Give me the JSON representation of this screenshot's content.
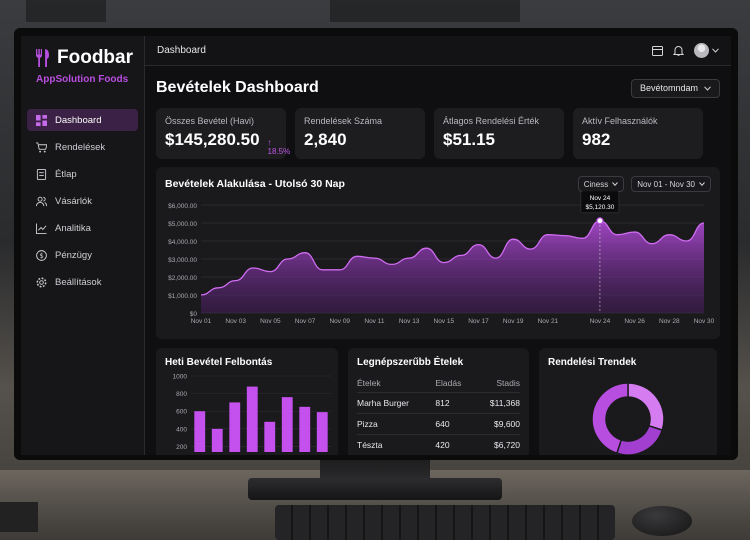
{
  "brand": {
    "name": "Foodbar",
    "subtitle": "AppSolution Foods"
  },
  "sidebar": {
    "items": [
      {
        "label": "Dashboard",
        "icon": "dashboard-icon",
        "active": true
      },
      {
        "label": "Rendelések",
        "icon": "cart-icon"
      },
      {
        "label": "Étlap",
        "icon": "menu-icon"
      },
      {
        "label": "Vásárlók",
        "icon": "users-icon"
      },
      {
        "label": "Analitika",
        "icon": "analytics-icon"
      },
      {
        "label": "Pénzügy",
        "icon": "dollar-icon"
      },
      {
        "label": "Beállítások",
        "icon": "gear-icon"
      }
    ]
  },
  "topbar": {
    "breadcrumb": "Dashboard"
  },
  "header": {
    "title": "Bevételek Dashboard",
    "range_button": "Bevétomndam"
  },
  "kpis": [
    {
      "label": "Összes Bevétel (Havi)",
      "value": "$145,280.50",
      "change": "↑ 18.5%"
    },
    {
      "label": "Rendelések Száma",
      "value": "2,840"
    },
    {
      "label": "Átlagos Rendelési Érték",
      "value": "$51.15"
    },
    {
      "label": "Aktív Felhasználók",
      "value": "982"
    }
  ],
  "revenue_chart": {
    "title": "Bevételek Alakulása - Utolsó 30 Nap",
    "filter": "Ciness",
    "date_range": "Nov 01 - Nov 30",
    "tooltip": {
      "date": "Nov 24",
      "value": "$5,120.30"
    }
  },
  "weekly_chart": {
    "title": "Heti Bevétel Felbontás"
  },
  "top_dishes": {
    "title": "Legnépszerűbb Ételek",
    "columns": [
      "Ételek",
      "Eladás",
      "Stadis"
    ],
    "rows": [
      [
        "Marha Burger",
        "812",
        "$11,368"
      ],
      [
        "Pizza",
        "640",
        "$9,600"
      ],
      [
        "Tészta",
        "420",
        "$6,720"
      ]
    ]
  },
  "order_trends": {
    "title": "Rendelési Trendek"
  },
  "colors": {
    "accent": "#b84ee0",
    "background": "#0f0f11",
    "card": "#1a1a1d"
  },
  "chart_data": [
    {
      "type": "area",
      "title": "Bevételek Alakulása - Utolsó 30 Nap",
      "xlabel": "",
      "ylabel": "",
      "x": [
        "Nov 01",
        "Nov 02",
        "Nov 03",
        "Nov 04",
        "Nov 05",
        "Nov 06",
        "Nov 07",
        "Nov 08",
        "Nov 09",
        "Nov 10",
        "Nov 11",
        "Nov 12",
        "Nov 13",
        "Nov 14",
        "Nov 15",
        "Nov 16",
        "Nov 17",
        "Nov 18",
        "Nov 19",
        "Nov 20",
        "Nov 21",
        "Nov 22",
        "Nov 23",
        "Nov 24",
        "Nov 25",
        "Nov 26",
        "Nov 27",
        "Nov 28",
        "Nov 29",
        "Nov 30"
      ],
      "x_ticks": [
        "Nov 01",
        "Nov 03",
        "Nov 05",
        "Nov 07",
        "Nov 09",
        "Nov 11",
        "Nov 13",
        "Nov 15",
        "Nov 17",
        "Nov 19",
        "Nov 21",
        "Nov 24",
        "Nov 26",
        "Nov 28",
        "Nov 30"
      ],
      "values": [
        1000,
        1400,
        1800,
        2500,
        2300,
        3000,
        3350,
        2400,
        2400,
        3150,
        3050,
        2700,
        3050,
        3600,
        2800,
        3200,
        3800,
        3050,
        4100,
        3550,
        4350,
        4300,
        4150,
        5120,
        4350,
        4500,
        3850,
        4350,
        4000,
        5000
      ],
      "y_ticks": [
        "$0",
        "$1,000.00",
        "$2,000.00",
        "$3,000.00",
        "$4,000.00",
        "$5,000.00",
        "$6,000.00"
      ],
      "ylim": [
        0,
        6000
      ],
      "grid": true,
      "highlight": {
        "x": "Nov 24",
        "value": 5120.3
      }
    },
    {
      "type": "bar",
      "title": "Heti Bevétel Felbontás",
      "categories": [
        "1",
        "2",
        "3",
        "4",
        "5",
        "6",
        "7",
        "8"
      ],
      "values": [
        600,
        400,
        700,
        880,
        480,
        760,
        650,
        590
      ],
      "y_ticks": [
        "200",
        "400",
        "600",
        "800",
        "1000"
      ],
      "ylim": [
        160,
        1000
      ]
    },
    {
      "type": "pie",
      "title": "Rendelési Trendek",
      "values": [
        30,
        25,
        45
      ],
      "colors": [
        "#d47cf0",
        "#a23fd0",
        "#b84ee0"
      ]
    }
  ]
}
